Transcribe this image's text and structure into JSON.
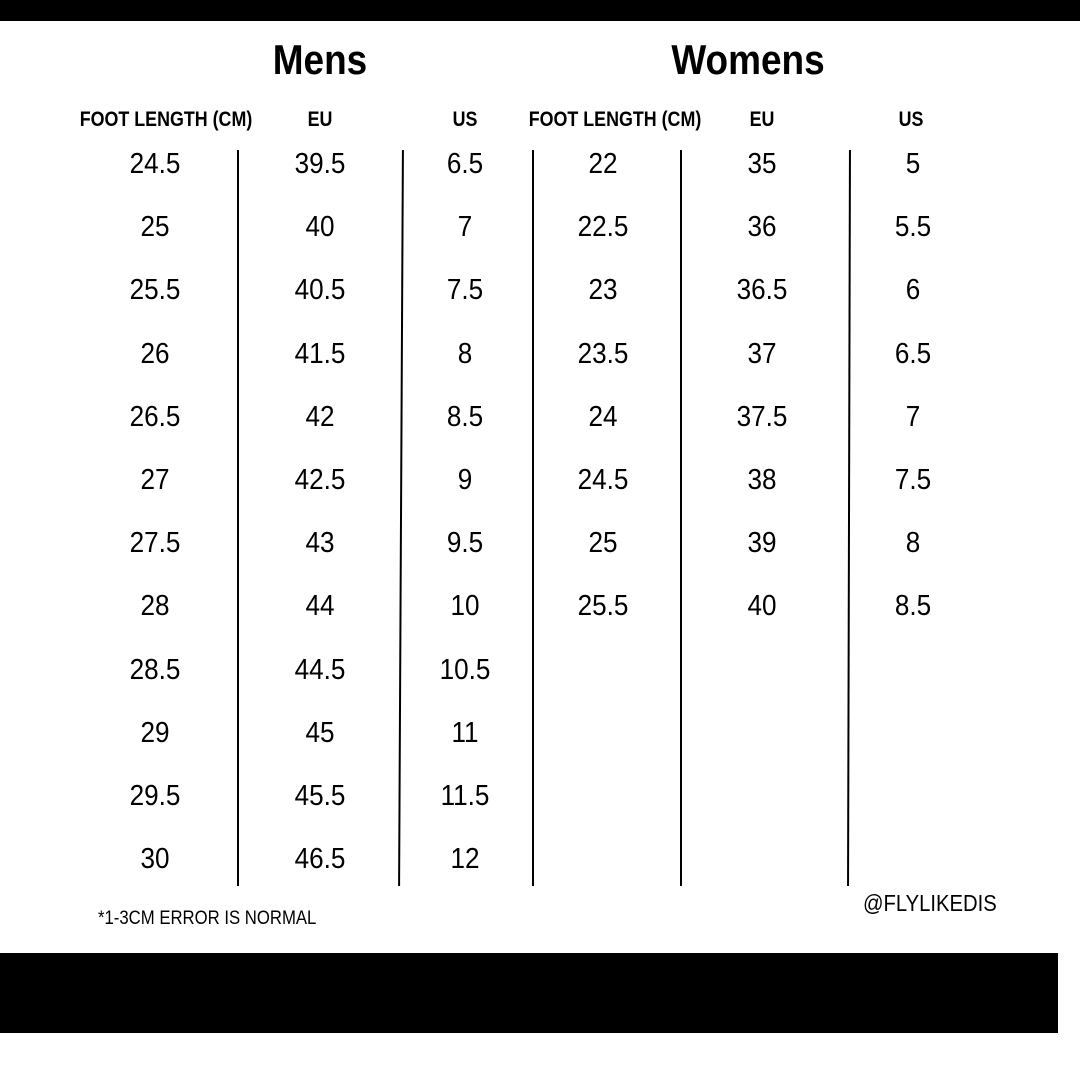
{
  "mens": {
    "title": "Mens",
    "headers": [
      "FOOT LENGTH (CM)",
      "EU",
      "US"
    ],
    "rows": [
      [
        "24.5",
        "39.5",
        "6.5"
      ],
      [
        "25",
        "40",
        "7"
      ],
      [
        "25.5",
        "40.5",
        "7.5"
      ],
      [
        "26",
        "41.5",
        "8"
      ],
      [
        "26.5",
        "42",
        "8.5"
      ],
      [
        "27",
        "42.5",
        "9"
      ],
      [
        "27.5",
        "43",
        "9.5"
      ],
      [
        "28",
        "44",
        "10"
      ],
      [
        "28.5",
        "44.5",
        "10.5"
      ],
      [
        "29",
        "45",
        "11"
      ],
      [
        "29.5",
        "45.5",
        "11.5"
      ],
      [
        "30",
        "46.5",
        "12"
      ]
    ]
  },
  "womens": {
    "title": "Womens",
    "headers": [
      "FOOT LENGTH (CM)",
      "EU",
      "US"
    ],
    "rows": [
      [
        "22",
        "35",
        "5"
      ],
      [
        "22.5",
        "36",
        "5.5"
      ],
      [
        "23",
        "36.5",
        "6"
      ],
      [
        "23.5",
        "37",
        "6.5"
      ],
      [
        "24",
        "37.5",
        "7"
      ],
      [
        "24.5",
        "38",
        "7.5"
      ],
      [
        "25",
        "39",
        "8"
      ],
      [
        "25.5",
        "40",
        "8.5"
      ]
    ]
  },
  "footer": {
    "note": "*1-3CM ERROR IS NORMAL",
    "handle": "@FLYLIKEDIS"
  }
}
